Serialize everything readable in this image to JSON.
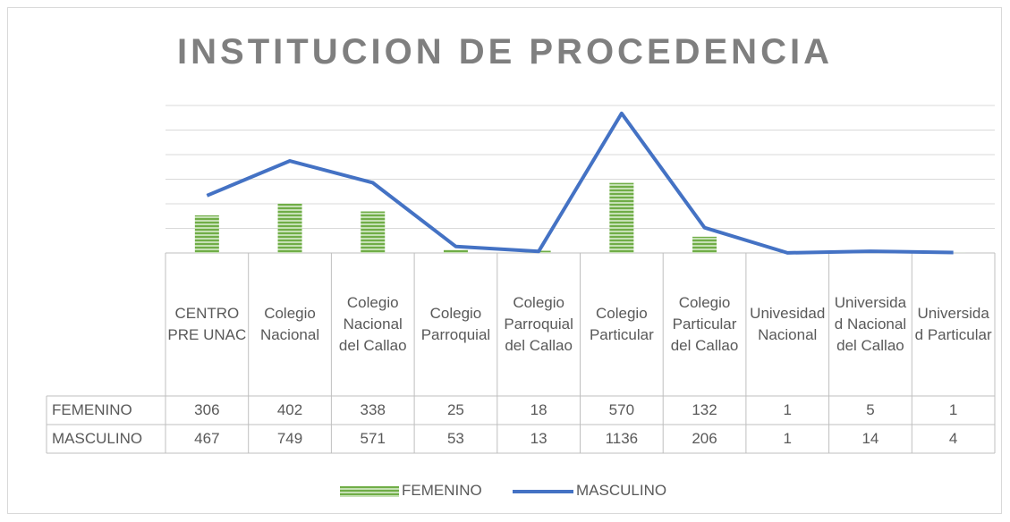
{
  "chart_data": {
    "type": "bar",
    "title": "INSTITUCION DE PROCEDENCIA",
    "categories": [
      "CENTRO PRE UNAC",
      "Colegio Nacional",
      "Colegio Nacional del Callao",
      "Colegio Parroquial",
      "Colegio Parroquial del Callao",
      "Colegio Particular",
      "Colegio Particular del Callao",
      "Univesidad Nacional",
      "Universidad Nacional del Callao",
      "Universidad Particular"
    ],
    "series": [
      {
        "name": "FEMENINO",
        "type": "bar",
        "color": "#70ad47",
        "values": [
          306,
          402,
          338,
          25,
          18,
          570,
          132,
          1,
          5,
          1
        ]
      },
      {
        "name": "MASCULINO",
        "type": "line",
        "color": "#4472c4",
        "values": [
          467,
          749,
          571,
          53,
          13,
          1136,
          206,
          1,
          14,
          4
        ]
      }
    ],
    "ylim": [
      0,
      1200
    ],
    "yticks": [
      0,
      200,
      400,
      600,
      800,
      1000,
      1200
    ],
    "grid": true
  }
}
